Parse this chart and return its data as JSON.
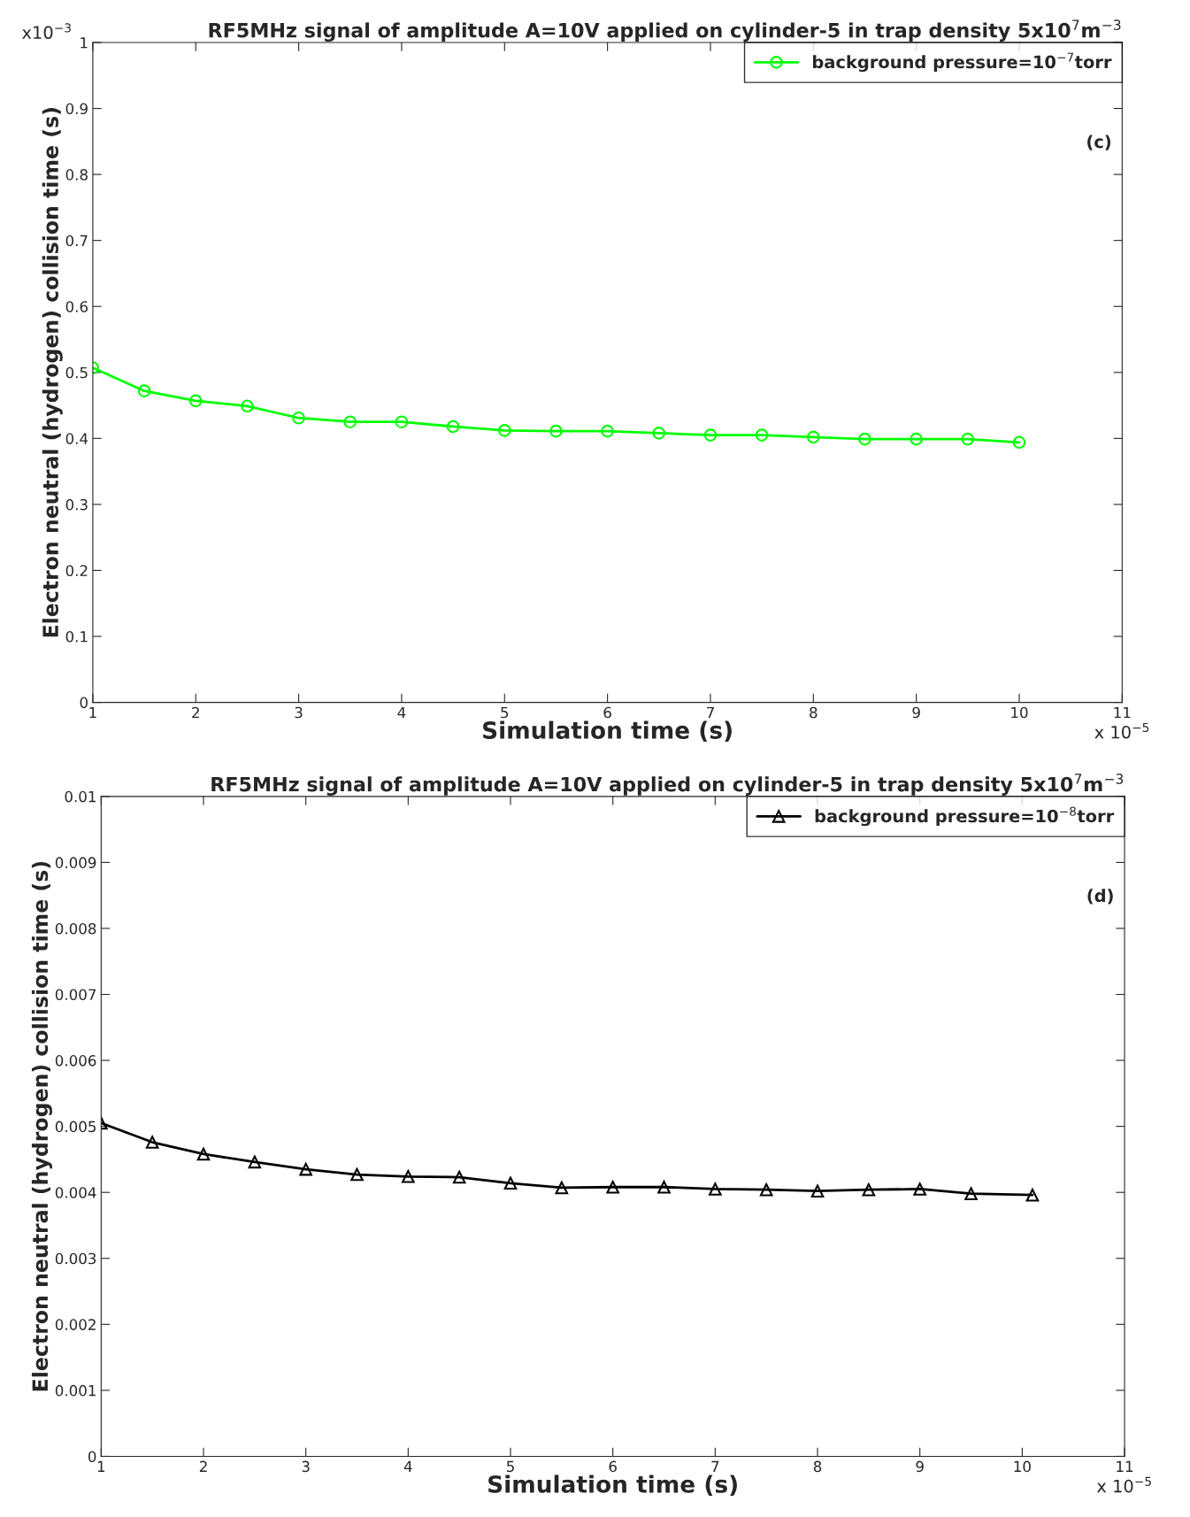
{
  "chart_data": [
    {
      "type": "line",
      "title": "RF5MHz signal of amplitude A=10V applied on cylinder-5 in trap density 5x10$^{7}$m$^{−3}$",
      "xlabel": "Simulation time (s)",
      "ylabel": "Electron neutral (hydrogen) collision time (s)",
      "annotations": [
        "x10$^{−3}$",
        "x 10$^{−5}$",
        "(c)"
      ],
      "x": [
        1,
        1.5,
        2,
        2.5,
        3,
        3.5,
        4,
        4.5,
        5,
        5.5,
        6,
        6.5,
        7,
        7.5,
        8,
        8.5,
        9,
        9.5,
        10
      ],
      "series": [
        {
          "name": "background pressure=10$^{−7}$torr",
          "color": "#00ff00",
          "marker": "circle",
          "values": [
            0.507,
            0.472,
            0.457,
            0.449,
            0.431,
            0.425,
            0.425,
            0.418,
            0.412,
            0.411,
            0.411,
            0.408,
            0.405,
            0.405,
            0.402,
            0.399,
            0.399,
            0.399,
            0.394
          ]
        }
      ],
      "xlim": [
        1,
        11
      ],
      "xticks": [
        1,
        2,
        3,
        4,
        5,
        6,
        7,
        8,
        9,
        10,
        11
      ],
      "ylim": [
        0,
        1
      ],
      "yticks": [
        0,
        0.1,
        0.2,
        0.3,
        0.4,
        0.5,
        0.6,
        0.7,
        0.8,
        0.9,
        1
      ],
      "legend": "top right",
      "grid": false
    },
    {
      "type": "line",
      "title": "RF5MHz signal of amplitude A=10V applied on cylinder-5 in trap density 5x10$^{7}$m$^{−3}$",
      "xlabel": "Simulation time (s)",
      "ylabel": "Electron neutral (hydrogen) collision time (s)",
      "annotations": [
        "x 10$^{−5}$",
        "(d)"
      ],
      "x": [
        1,
        1.5,
        2,
        2.5,
        3,
        3.5,
        4,
        4.5,
        5,
        5.5,
        6,
        6.5,
        7,
        7.5,
        8,
        8.5,
        9,
        9.5,
        10.1
      ],
      "series": [
        {
          "name": "background pressure=10$^{−8}$torr",
          "color": "#000000",
          "marker": "triangle",
          "values": [
            0.00505,
            0.00476,
            0.00458,
            0.00446,
            0.00435,
            0.00427,
            0.00424,
            0.00423,
            0.00414,
            0.00407,
            0.00408,
            0.00408,
            0.00405,
            0.00404,
            0.00402,
            0.00404,
            0.00405,
            0.00398,
            0.00396
          ]
        }
      ],
      "xlim": [
        1,
        11
      ],
      "xticks": [
        1,
        2,
        3,
        4,
        5,
        6,
        7,
        8,
        9,
        10,
        11
      ],
      "ylim": [
        0,
        0.01
      ],
      "yticks": [
        0,
        0.001,
        0.002,
        0.003,
        0.004,
        0.005,
        0.006,
        0.007,
        0.008,
        0.009,
        0.01
      ],
      "legend": "top right",
      "grid": false
    }
  ]
}
